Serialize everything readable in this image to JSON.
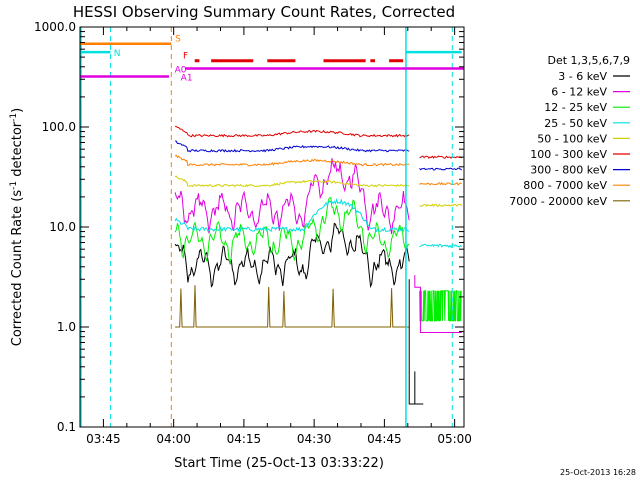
{
  "chart_data": {
    "type": "line",
    "title": "HESSI Observing Summary Count Rates, Corrected",
    "xlabel": "Start Time (25-Oct-13 03:33:22)",
    "ylabel_main": "Corrected Count Rate (s",
    "ylabel_sup1": "-1",
    "ylabel_mid": " detector",
    "ylabel_sup2": "-1",
    "ylabel_end": ")",
    "ylim": [
      0.1,
      1000
    ],
    "yscale": "log",
    "ytick_values": [
      0.1,
      1,
      10,
      100,
      1000
    ],
    "ytick_labels": [
      "0.1",
      "1.0",
      "10.0",
      "100.0",
      "1000.0"
    ],
    "xlim_minutes": [
      -20,
      62
    ],
    "xtick_minutes": [
      -15,
      0,
      15,
      30,
      45,
      60
    ],
    "xtick_labels": [
      "03:45",
      "04:00",
      "04:15",
      "04:30",
      "04:45",
      "05:00"
    ],
    "legend_title": "Det 1,3,5,6,7,9",
    "legend_position": "right",
    "footer_date": "25-Oct-2013 16:28",
    "series": [
      {
        "name": "3 - 6 keV",
        "color": "#000000",
        "level": 4.3
      },
      {
        "name": "6 - 12 keV",
        "color": "#e000e0",
        "level": 15
      },
      {
        "name": "12 - 25 keV",
        "color": "#00ee00",
        "level": 7.5
      },
      {
        "name": "25 - 50 keV",
        "color": "#00e0e0",
        "level": 9.5
      },
      {
        "name": "50 - 100 keV",
        "color": "#d0d000",
        "level": 26
      },
      {
        "name": "100 - 300 keV",
        "color": "#e00000",
        "level": 82
      },
      {
        "name": "300 - 800 keV",
        "color": "#0000d0",
        "level": 58
      },
      {
        "name": "800 - 7000 keV",
        "color": "#ff8000",
        "level": 42
      },
      {
        "name": "7000 - 20000 keV",
        "color": "#806000",
        "level": 1.0
      }
    ],
    "flags": [
      {
        "label": "S",
        "color": "#ff8000"
      },
      {
        "label": "N",
        "color": "#00e0e0"
      },
      {
        "label": "F",
        "color": "#e00000"
      },
      {
        "label": "A0",
        "color": "#e000e0"
      },
      {
        "label": "A1",
        "color": "#e000e0"
      }
    ]
  }
}
